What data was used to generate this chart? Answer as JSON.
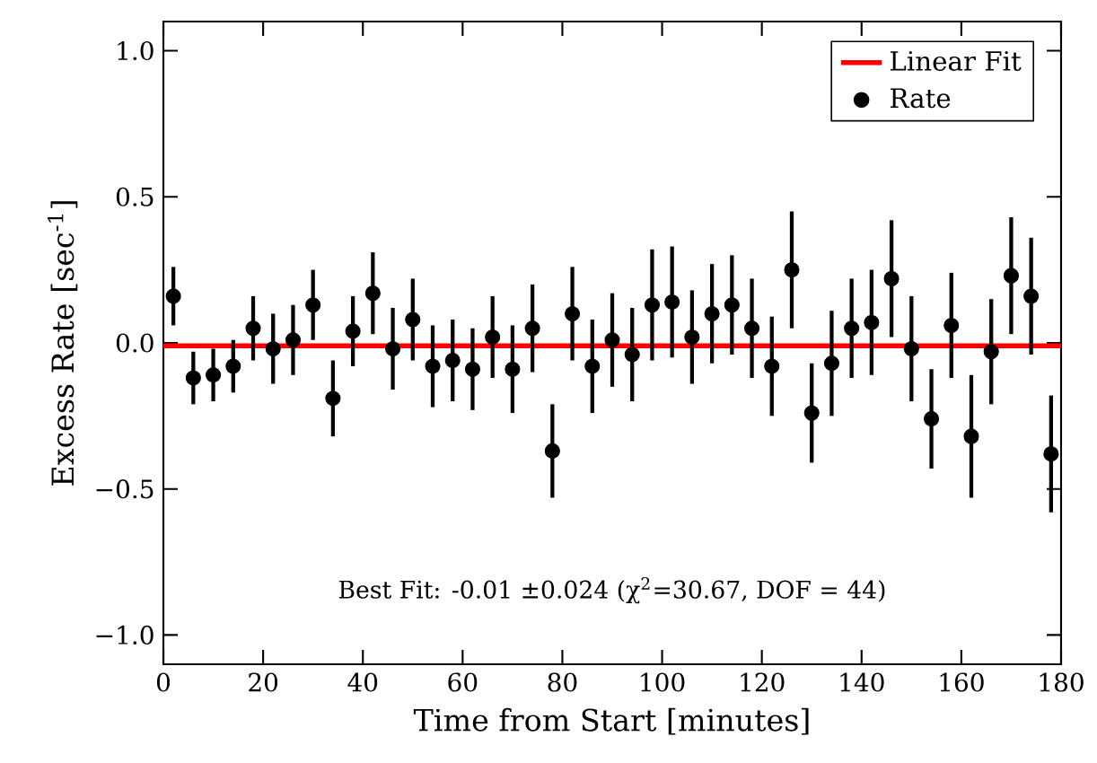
{
  "chart_data": {
    "type": "scatter",
    "xlabel": "Time from Start [minutes]",
    "ylabel": "Excess Rate [sec$^{-1}$]",
    "xlim": [
      0,
      180
    ],
    "ylim": [
      -1.1,
      1.1
    ],
    "xticks": [
      0,
      20,
      40,
      60,
      80,
      100,
      120,
      140,
      160,
      180
    ],
    "yticks": [
      {
        "value": -1.0,
        "label": "−1.0"
      },
      {
        "value": -0.5,
        "label": "−0.5"
      },
      {
        "value": 0.0,
        "label": "0.0"
      },
      {
        "value": 0.5,
        "label": "0.5"
      },
      {
        "value": 1.0,
        "label": "1.0"
      }
    ],
    "grid": false,
    "legend": "top right",
    "annotations": [
      "Best Fit: -0.01 ±0.024 (χ$^{2}$=30.67, DOF = 44)"
    ],
    "series": [
      {
        "name": "Linear Fit",
        "type": "line",
        "color": "#ff0000",
        "marker": "none",
        "x": [
          0,
          180
        ],
        "values": [
          -0.01,
          -0.01
        ]
      },
      {
        "name": "Rate",
        "marker": "circle",
        "color": "#000000",
        "x": [
          2,
          6,
          10,
          14,
          18,
          22,
          26,
          30,
          34,
          38,
          42,
          46,
          50,
          54,
          58,
          62,
          66,
          70,
          74,
          78,
          82,
          86,
          90,
          94,
          98,
          102,
          106,
          110,
          114,
          118,
          122,
          126,
          130,
          134,
          138,
          142,
          146,
          150,
          154,
          158,
          162,
          166,
          170,
          174,
          178
        ],
        "values": [
          0.16,
          -0.12,
          -0.11,
          -0.08,
          0.05,
          -0.02,
          0.01,
          0.13,
          -0.19,
          0.04,
          0.17,
          -0.02,
          0.08,
          -0.08,
          -0.06,
          -0.09,
          0.02,
          -0.09,
          0.05,
          -0.37,
          0.1,
          -0.08,
          0.01,
          -0.04,
          0.13,
          0.14,
          0.02,
          0.1,
          0.13,
          0.05,
          -0.08,
          0.25,
          -0.24,
          -0.07,
          0.05,
          0.07,
          0.22,
          -0.02,
          -0.26,
          0.06,
          -0.32,
          -0.03,
          0.23,
          0.16,
          -0.38
        ],
        "errors": [
          0.1,
          0.09,
          0.09,
          0.09,
          0.11,
          0.12,
          0.12,
          0.12,
          0.13,
          0.12,
          0.14,
          0.14,
          0.14,
          0.14,
          0.14,
          0.14,
          0.14,
          0.15,
          0.15,
          0.16,
          0.16,
          0.16,
          0.16,
          0.16,
          0.19,
          0.19,
          0.16,
          0.17,
          0.17,
          0.17,
          0.17,
          0.2,
          0.17,
          0.18,
          0.17,
          0.18,
          0.2,
          0.18,
          0.17,
          0.18,
          0.21,
          0.18,
          0.2,
          0.2,
          0.2
        ]
      }
    ]
  }
}
